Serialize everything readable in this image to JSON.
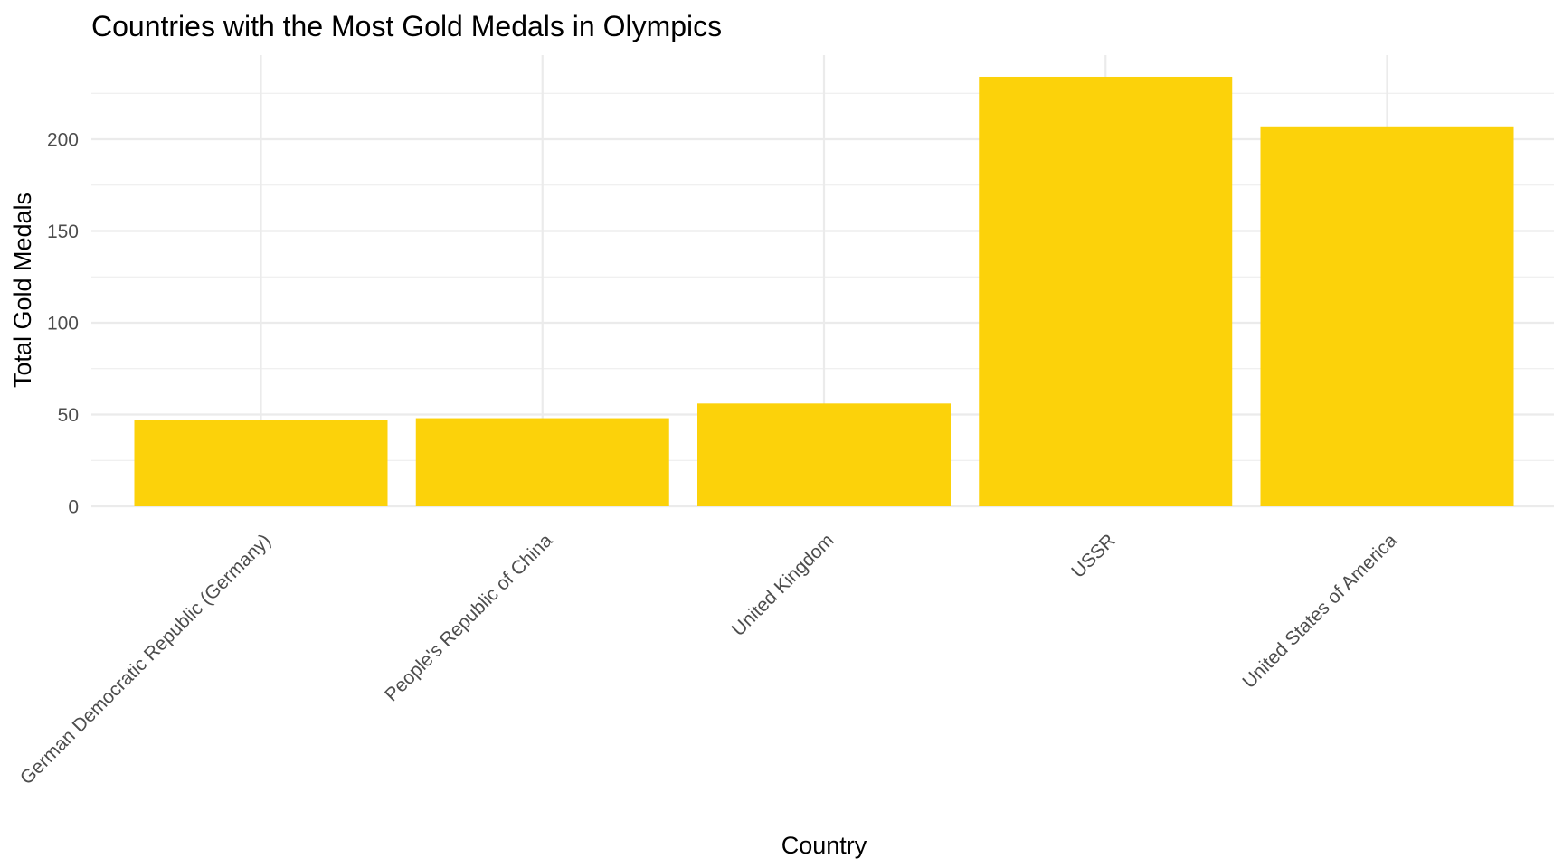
{
  "chart_data": {
    "type": "bar",
    "title": "Countries with the Most Gold Medals in Olympics",
    "xlabel": "Country",
    "ylabel": "Total Gold Medals",
    "categories": [
      "German Democratic Republic (Germany)",
      "People's Republic of China",
      "United Kingdom",
      "USSR",
      "United States of America"
    ],
    "values": [
      47,
      48,
      56,
      234,
      207
    ],
    "ylim": [
      0,
      245
    ],
    "yticks": [
      0,
      50,
      100,
      150,
      200
    ],
    "ytick_labels": [
      "0",
      "50",
      "100",
      "150",
      "200"
    ],
    "grid": true,
    "legend": "none",
    "bar_color": "#FCD20A"
  }
}
